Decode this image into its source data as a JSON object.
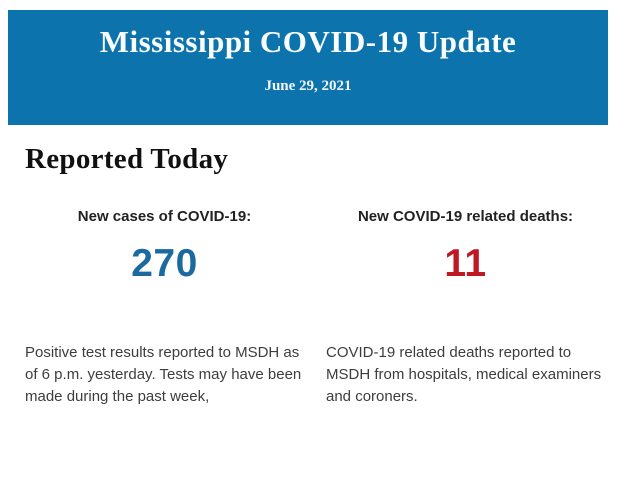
{
  "header": {
    "title": "Mississippi COVID-19 Update",
    "date": "June 29, 2021",
    "background": "#0d73ad"
  },
  "section": {
    "title": "Reported Today"
  },
  "stats": [
    {
      "label": "New cases of COVID-19:",
      "value": "270",
      "value_color": "#1b699e",
      "description": "Positive test results reported to MSDH as of 6 p.m. yesterday. Tests may have been made during the past week,"
    },
    {
      "label": "New COVID-19 related deaths:",
      "value": "11",
      "value_color": "#c01823",
      "description": "COVID-19 related deaths reported to MSDH from hospitals, medical examiners and coroners."
    }
  ]
}
